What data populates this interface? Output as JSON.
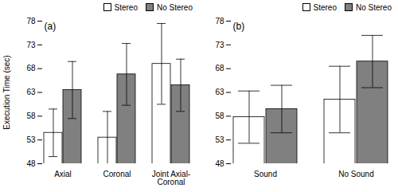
{
  "chart_data": [
    {
      "type": "bar",
      "annotations": [
        "(a)"
      ],
      "categories": [
        "Axial",
        "Coronal",
        "Joint Axial-\nCoronal"
      ],
      "series": [
        {
          "name": "Stereo",
          "color": "#ffffff",
          "values": [
            54.5,
            53.5,
            69.0
          ],
          "errors": [
            5.0,
            5.5,
            8.5
          ]
        },
        {
          "name": "No Stereo",
          "color": "#808080",
          "values": [
            63.5,
            66.8,
            64.5
          ],
          "errors": [
            6.0,
            6.5,
            5.5
          ]
        }
      ],
      "ylabel": "Execution Time (sec)",
      "ylim": [
        48,
        78
      ],
      "yticks": [
        48,
        53,
        58,
        63,
        68,
        73,
        78
      ],
      "legend": "upper right"
    },
    {
      "type": "bar",
      "annotations": [
        "(b)"
      ],
      "categories": [
        "Sound",
        "No Sound"
      ],
      "series": [
        {
          "name": "Stereo",
          "color": "#ffffff",
          "values": [
            57.8,
            61.5
          ],
          "errors": [
            5.5,
            7.0
          ]
        },
        {
          "name": "No Stereo",
          "color": "#808080",
          "values": [
            59.5,
            69.5
          ],
          "errors": [
            5.0,
            5.5
          ]
        }
      ],
      "ylim": [
        48,
        78
      ],
      "yticks": [
        48,
        53,
        58,
        63,
        68,
        73,
        78
      ],
      "legend": "upper right"
    }
  ]
}
